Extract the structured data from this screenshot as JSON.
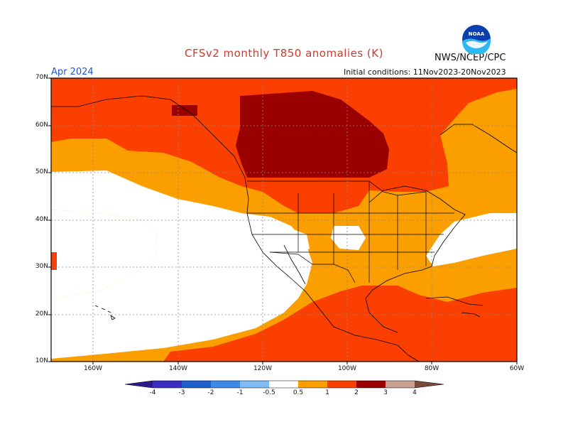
{
  "title": "CFSv2 monthly T850 anomalies (K)",
  "agency": "NWS/NCEP/CPC",
  "month": "Apr 2024",
  "initial_conditions": "Initial conditions: 11Nov2023-20Nov2023",
  "logo_text": "NOAA",
  "map": {
    "lat_labels": [
      "70N",
      "60N",
      "50N",
      "40N",
      "30N",
      "20N",
      "10N"
    ],
    "lon_labels": [
      "160W",
      "140W",
      "120W",
      "100W",
      "80W",
      "60W"
    ],
    "lon_range": [
      -170,
      -60
    ],
    "lat_range": [
      10,
      70
    ]
  },
  "colorbar": {
    "labels": [
      "-4",
      "-3",
      "-2",
      "-1",
      "-0.5",
      "0.5",
      "1",
      "2",
      "3",
      "4"
    ],
    "colors": {
      "lt_-4": "#2a1a8c",
      "-4_-3": "#3a2fc0",
      "-3_-2": "#1f5fcc",
      "-2_-1": "#3a8ce6",
      "-1_-0.5": "#7fbcf5",
      "-0.5_0.5": "#ffffff",
      "0.5_1": "#fb9e00",
      "1_2": "#fb3f00",
      "2_3": "#9b0000",
      "3_4": "#c8a090",
      "gt_4": "#7a4a3a"
    }
  }
}
